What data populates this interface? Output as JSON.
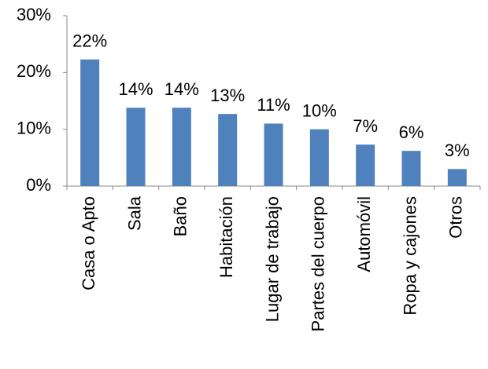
{
  "chart_data": {
    "type": "bar",
    "categories": [
      "Casa o Apto",
      "Sala",
      "Baño",
      "Habitación",
      "Lugar de trabajo",
      "Partes del cuerpo",
      "Automóvil",
      "Ropa y cajones",
      "Otros"
    ],
    "values": [
      22.3,
      13.8,
      13.8,
      12.7,
      11,
      10,
      7.3,
      6.2,
      3
    ],
    "value_labels": [
      "22%",
      "14%",
      "14%",
      "13%",
      "11%",
      "10%",
      "7%",
      "6%",
      "3%"
    ],
    "color": "#4f81bd",
    "ylim": [
      0,
      30
    ],
    "yticks": [
      {
        "value": 0,
        "label": "0%"
      },
      {
        "value": 10,
        "label": "10%"
      },
      {
        "value": 20,
        "label": "20%"
      },
      {
        "value": 30,
        "label": "30%"
      }
    ],
    "grid": false
  }
}
